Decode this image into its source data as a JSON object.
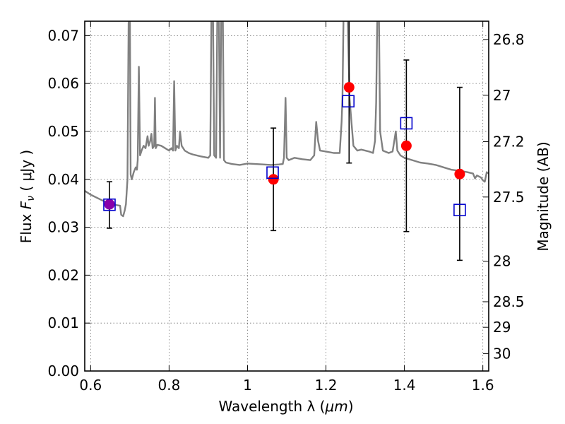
{
  "chart_data": {
    "type": "scatter",
    "xlabel_text": "Wavelength  λ (",
    "xlabel_unit": "μm",
    "xlabel_close": ")",
    "ylabel_text": "Flux  ",
    "ylabel_symbol": "F",
    "ylabel_sub": "ν",
    "ylabel_unit": " ( μJy )",
    "ylabel_right": "Magnitude (AB)",
    "xlim": [
      0.585,
      1.615
    ],
    "ylim": [
      0.0,
      0.073
    ],
    "x_ticks": [
      0.6,
      0.8,
      1.0,
      1.2,
      1.4,
      1.6
    ],
    "x_tick_labels": [
      "0.6",
      "0.8",
      "1",
      "1.2",
      "1.4",
      "1.6"
    ],
    "y_ticks": [
      0.0,
      0.01,
      0.02,
      0.03,
      0.04,
      0.05,
      0.06,
      0.07
    ],
    "y_tick_labels": [
      "0.00",
      "0.01",
      "0.02",
      "0.03",
      "0.04",
      "0.05",
      "0.06",
      "0.07"
    ],
    "right_ticks": [
      {
        "mag": 26.8,
        "label": "26.8"
      },
      {
        "mag": 27.0,
        "label": "27"
      },
      {
        "mag": 27.2,
        "label": "27.2"
      },
      {
        "mag": 27.5,
        "label": "27.5"
      },
      {
        "mag": 28.0,
        "label": "28"
      },
      {
        "mag": 28.5,
        "label": "28.5"
      },
      {
        "mag": 29.0,
        "label": "29"
      },
      {
        "mag": 30.0,
        "label": "30"
      }
    ],
    "grid": true,
    "colors": {
      "model": "#808080",
      "observed": "#ff0000",
      "model_band": "#0000cc",
      "errorbar": "#000000",
      "overlap": "#8800aa"
    },
    "observed": [
      {
        "x": 0.648,
        "y": 0.0348,
        "yerr_low": 0.0298,
        "yerr_high": 0.0395
      },
      {
        "x": 1.066,
        "y": 0.04,
        "yerr_low": 0.0293,
        "yerr_high": 0.0507
      },
      {
        "x": 1.259,
        "y": 0.0592,
        "yerr_low": 0.0434,
        "yerr_high": 0.075
      },
      {
        "x": 1.405,
        "y": 0.047,
        "yerr_low": 0.0291,
        "yerr_high": 0.0649
      },
      {
        "x": 1.541,
        "y": 0.0411,
        "yerr_low": 0.0231,
        "yerr_high": 0.0592
      }
    ],
    "model_bands": [
      {
        "x": 0.648,
        "y": 0.0347
      },
      {
        "x": 1.064,
        "y": 0.0414
      },
      {
        "x": 1.257,
        "y": 0.0563
      },
      {
        "x": 1.405,
        "y": 0.0517
      },
      {
        "x": 1.541,
        "y": 0.0336
      }
    ],
    "model_spectrum": [
      [
        0.585,
        0.0376
      ],
      [
        0.6,
        0.0368
      ],
      [
        0.62,
        0.036
      ],
      [
        0.64,
        0.0352
      ],
      [
        0.66,
        0.0347
      ],
      [
        0.675,
        0.0345
      ],
      [
        0.678,
        0.0326
      ],
      [
        0.683,
        0.0323
      ],
      [
        0.687,
        0.0335
      ],
      [
        0.69,
        0.0348
      ],
      [
        0.694,
        0.04
      ],
      [
        0.697,
        0.075
      ],
      [
        0.7,
        0.075
      ],
      [
        0.702,
        0.041
      ],
      [
        0.705,
        0.04
      ],
      [
        0.71,
        0.0415
      ],
      [
        0.715,
        0.0425
      ],
      [
        0.718,
        0.042
      ],
      [
        0.72,
        0.044
      ],
      [
        0.723,
        0.0635
      ],
      [
        0.726,
        0.045
      ],
      [
        0.73,
        0.046
      ],
      [
        0.735,
        0.047
      ],
      [
        0.74,
        0.0465
      ],
      [
        0.745,
        0.049
      ],
      [
        0.748,
        0.047
      ],
      [
        0.752,
        0.048
      ],
      [
        0.755,
        0.0495
      ],
      [
        0.758,
        0.0465
      ],
      [
        0.762,
        0.047
      ],
      [
        0.764,
        0.057
      ],
      [
        0.766,
        0.0465
      ],
      [
        0.77,
        0.0472
      ],
      [
        0.78,
        0.047
      ],
      [
        0.79,
        0.0465
      ],
      [
        0.8,
        0.046
      ],
      [
        0.806,
        0.0465
      ],
      [
        0.81,
        0.046
      ],
      [
        0.813,
        0.0605
      ],
      [
        0.816,
        0.046
      ],
      [
        0.82,
        0.047
      ],
      [
        0.825,
        0.0465
      ],
      [
        0.828,
        0.05
      ],
      [
        0.832,
        0.047
      ],
      [
        0.84,
        0.046
      ],
      [
        0.85,
        0.0455
      ],
      [
        0.86,
        0.0452
      ],
      [
        0.88,
        0.0448
      ],
      [
        0.9,
        0.0445
      ],
      [
        0.905,
        0.045
      ],
      [
        0.908,
        0.075
      ],
      [
        0.912,
        0.075
      ],
      [
        0.915,
        0.045
      ],
      [
        0.92,
        0.0445
      ],
      [
        0.923,
        0.075
      ],
      [
        0.927,
        0.075
      ],
      [
        0.93,
        0.0445
      ],
      [
        0.933,
        0.075
      ],
      [
        0.937,
        0.075
      ],
      [
        0.94,
        0.044
      ],
      [
        0.945,
        0.0435
      ],
      [
        0.96,
        0.0432
      ],
      [
        0.98,
        0.043
      ],
      [
        1.0,
        0.0433
      ],
      [
        1.02,
        0.0432
      ],
      [
        1.04,
        0.0431
      ],
      [
        1.06,
        0.043
      ],
      [
        1.08,
        0.0431
      ],
      [
        1.09,
        0.0432
      ],
      [
        1.093,
        0.0445
      ],
      [
        1.097,
        0.057
      ],
      [
        1.1,
        0.0445
      ],
      [
        1.105,
        0.044
      ],
      [
        1.12,
        0.0445
      ],
      [
        1.14,
        0.0442
      ],
      [
        1.16,
        0.044
      ],
      [
        1.17,
        0.045
      ],
      [
        1.175,
        0.052
      ],
      [
        1.18,
        0.048
      ],
      [
        1.185,
        0.046
      ],
      [
        1.2,
        0.0458
      ],
      [
        1.22,
        0.0455
      ],
      [
        1.235,
        0.0455
      ],
      [
        1.24,
        0.052
      ],
      [
        1.242,
        0.057
      ],
      [
        1.245,
        0.075
      ],
      [
        1.255,
        0.075
      ],
      [
        1.26,
        0.057
      ],
      [
        1.265,
        0.052
      ],
      [
        1.27,
        0.047
      ],
      [
        1.28,
        0.046
      ],
      [
        1.29,
        0.0462
      ],
      [
        1.3,
        0.046
      ],
      [
        1.31,
        0.0458
      ],
      [
        1.32,
        0.0455
      ],
      [
        1.325,
        0.048
      ],
      [
        1.328,
        0.056
      ],
      [
        1.331,
        0.075
      ],
      [
        1.335,
        0.075
      ],
      [
        1.338,
        0.05
      ],
      [
        1.345,
        0.046
      ],
      [
        1.36,
        0.0455
      ],
      [
        1.37,
        0.0458
      ],
      [
        1.378,
        0.05
      ],
      [
        1.382,
        0.046
      ],
      [
        1.39,
        0.045
      ],
      [
        1.4,
        0.0445
      ],
      [
        1.42,
        0.044
      ],
      [
        1.44,
        0.0435
      ],
      [
        1.46,
        0.0433
      ],
      [
        1.48,
        0.043
      ],
      [
        1.5,
        0.0425
      ],
      [
        1.52,
        0.042
      ],
      [
        1.54,
        0.0418
      ],
      [
        1.56,
        0.0415
      ],
      [
        1.575,
        0.0412
      ],
      [
        1.58,
        0.0402
      ],
      [
        1.585,
        0.0408
      ],
      [
        1.595,
        0.0404
      ],
      [
        1.6,
        0.0398
      ],
      [
        1.605,
        0.0395
      ],
      [
        1.61,
        0.0415
      ],
      [
        1.615,
        0.0412
      ]
    ]
  }
}
